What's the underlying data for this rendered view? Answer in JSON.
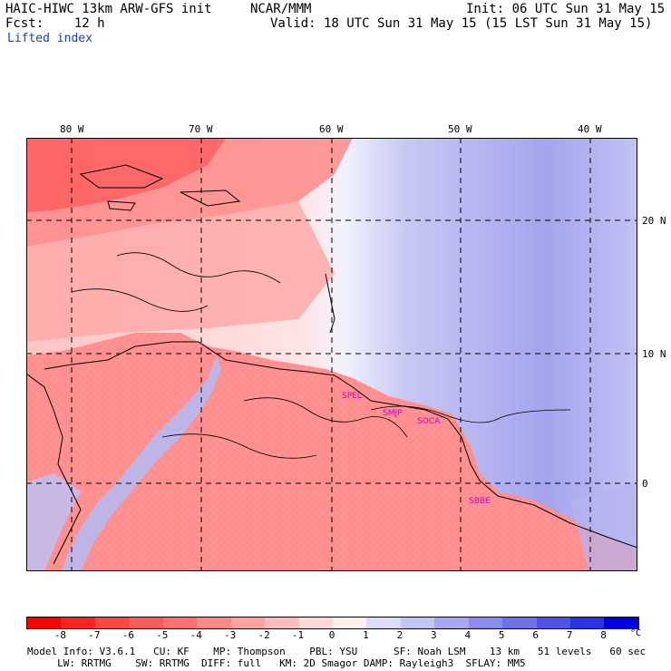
{
  "header": {
    "model_title": "HAIC-HIWC 13km ARW-GFS init",
    "org": "NCAR/MMM",
    "init": "Init: 06 UTC Sun 31 May 15",
    "fcst": "Fcst:    12 h",
    "valid": "Valid: 18 UTC Sun 31 May 15 (15 LST Sun 31 May 15)",
    "field": "Lifted index"
  },
  "map": {
    "lon_labels": [
      "80 W",
      "70 W",
      "60 W",
      "50 W",
      "40 W"
    ],
    "lat_labels": [
      "20 N",
      "10 N",
      "0"
    ],
    "stations": [
      "SPEL",
      "SMJP",
      "SOCA",
      "SBBE"
    ]
  },
  "colorbar": {
    "unit": "°C",
    "ticks": [
      "-8",
      "-7",
      "-6",
      "-5",
      "-4",
      "-3",
      "-2",
      "-1",
      "0",
      "1",
      "2",
      "3",
      "4",
      "5",
      "6",
      "7",
      "8"
    ],
    "colors": [
      "#ff0000",
      "#ff2222",
      "#ff4444",
      "#ff5a5a",
      "#ff7070",
      "#ff8888",
      "#ffa2a2",
      "#ffbcbc",
      "#ffd8d8",
      "#ffeeee",
      "#dcdcfa",
      "#c4c4f6",
      "#a8a8f2",
      "#8c8cee",
      "#7070ea",
      "#5252e6",
      "#2f2fe4",
      "#0000e0"
    ]
  },
  "footer": {
    "line1": "Model Info: V3.6.1   CU: KF    MP: Thompson    PBL: YSU      SF: Noah LSM    13 km   51 levels   60 sec",
    "line2": "     LW: RRTMG    SW: RRTMG  DIFF: full   KM: 2D Smagor DAMP: Rayleigh3  SFLAY: MM5"
  }
}
